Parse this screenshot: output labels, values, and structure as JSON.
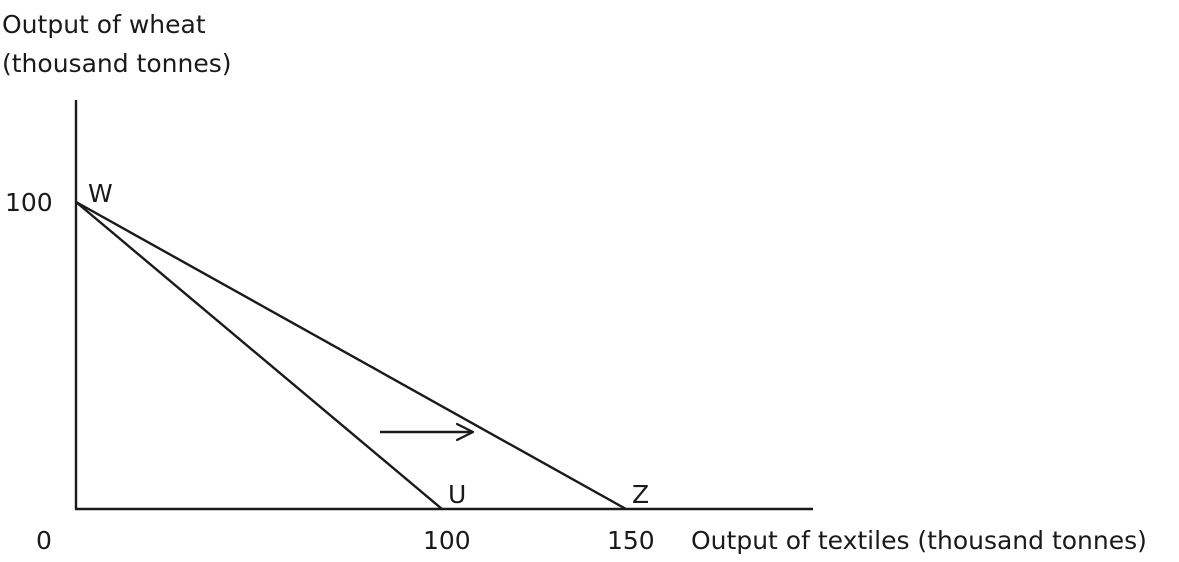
{
  "diagram": {
    "y_axis_label_line1": "Output of wheat",
    "y_axis_label_line2": "(thousand tonnes)",
    "x_axis_label": "Output of textiles (thousand tonnes)",
    "origin_label": "0",
    "y_tick_100": "100",
    "x_tick_100": "100",
    "x_tick_150": "150",
    "point_w": "W",
    "point_u": "U",
    "point_z": "Z"
  },
  "chart_data": {
    "type": "line",
    "series": [
      {
        "points": [
          [
            0,
            100
          ],
          [
            100,
            0
          ]
        ]
      },
      {
        "points": [
          [
            0,
            100
          ],
          [
            150,
            0
          ]
        ]
      }
    ],
    "annotations": [
      "W",
      "U",
      "Z"
    ],
    "arrow_direction": "right"
  }
}
